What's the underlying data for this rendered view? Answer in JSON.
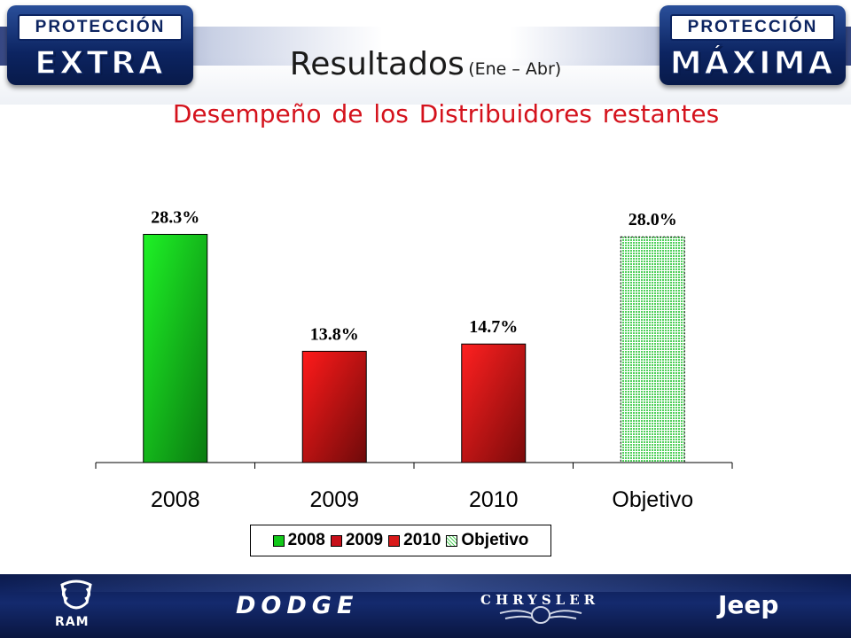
{
  "header": {
    "badge_left": {
      "top": "PROTECCIÓN",
      "bottom": "EXTRA"
    },
    "badge_right": {
      "top": "PROTECCIÓN",
      "bottom": "MÁXIMA"
    },
    "title": "Resultados",
    "title_suffix": "(Ene – Abr)",
    "subtitle": "Desempeño de los Distribuidores restantes"
  },
  "chart_data": {
    "type": "bar",
    "categories": [
      "2008",
      "2009",
      "2010",
      "Objetivo"
    ],
    "values": [
      28.3,
      13.8,
      14.7,
      28.0
    ],
    "data_labels": [
      "28.3%",
      "13.8%",
      "14.7%",
      "28.0%"
    ],
    "ylim": [
      0,
      30
    ],
    "grid": false,
    "legend": {
      "placement": "bottom",
      "entries": [
        "2008",
        "2009",
        "2010",
        "Objetivo"
      ]
    },
    "colors": {
      "2008": "#12c91a",
      "2009": "#c8101a",
      "2010": "#d91a1a",
      "Objetivo": "#bfeebf"
    }
  },
  "footer": {
    "brands": [
      "RAM",
      "DODGE",
      "CHRYSLER",
      "Jeep"
    ],
    "brand_icons": [
      "ram-head-icon",
      "chrysler-wings-icon"
    ]
  }
}
